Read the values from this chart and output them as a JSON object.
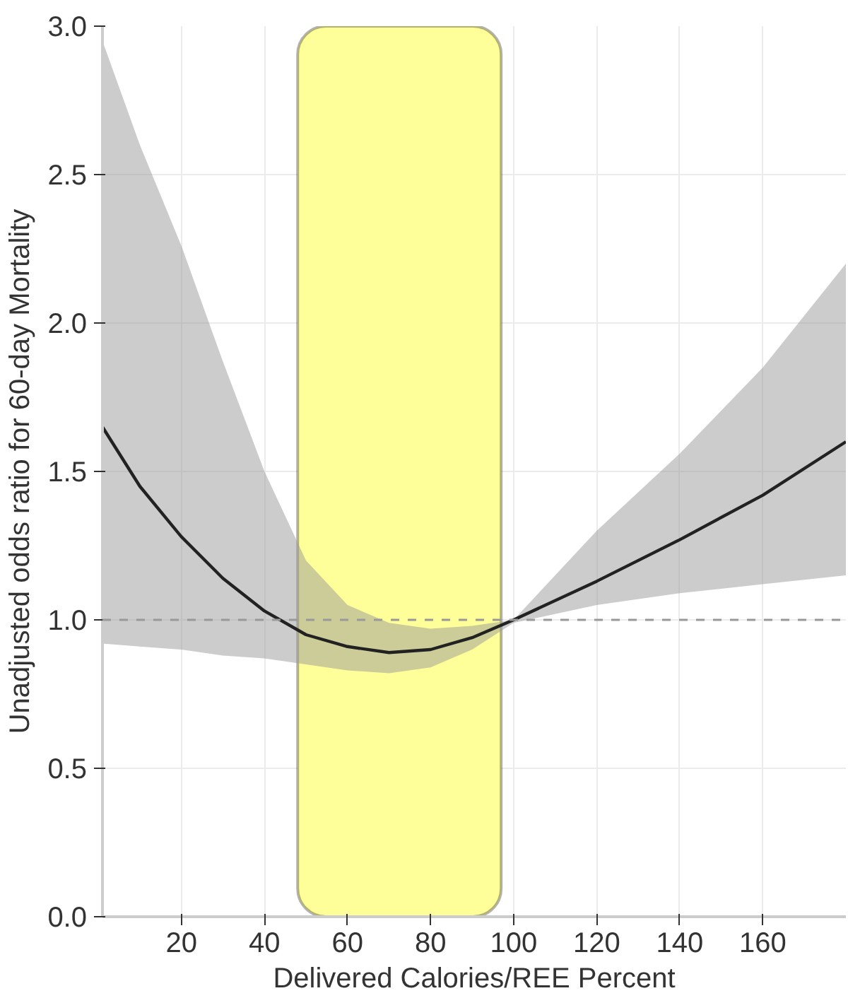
{
  "chart_data": {
    "type": "line",
    "xlabel": "Delivered Calories/REE Percent",
    "ylabel": "Unadjusted odds ratio for 60-day Mortality",
    "x": [
      1,
      10,
      20,
      30,
      40,
      50,
      60,
      70,
      80,
      90,
      100,
      120,
      140,
      160,
      180
    ],
    "series": [
      {
        "color": "#222222",
        "values": [
          1.65,
          1.45,
          1.28,
          1.14,
          1.03,
          0.95,
          0.91,
          0.89,
          0.9,
          0.94,
          1.0,
          1.13,
          1.27,
          1.42,
          1.6
        ],
        "lower": [
          0.92,
          0.91,
          0.9,
          0.88,
          0.87,
          0.85,
          0.83,
          0.82,
          0.84,
          0.9,
          0.99,
          1.05,
          1.09,
          1.12,
          1.15
        ],
        "upper": [
          2.95,
          2.6,
          2.26,
          1.87,
          1.5,
          1.2,
          1.05,
          0.99,
          0.97,
          0.98,
          1.0,
          1.3,
          1.56,
          1.85,
          2.2
        ]
      }
    ],
    "xlim": [
      1,
      180
    ],
    "ylim": [
      0,
      3
    ],
    "xticks": [
      20,
      40,
      60,
      80,
      100,
      120,
      140,
      160
    ],
    "yticks": [
      {
        "value": 0,
        "label": "0.0"
      },
      {
        "value": 0.5,
        "label": "0.5"
      },
      {
        "value": 1,
        "label": "1.0"
      },
      {
        "value": 1.5,
        "label": "1.5"
      },
      {
        "value": 2,
        "label": "2.0"
      },
      {
        "value": 2.5,
        "label": "2.5"
      },
      {
        "value": 3,
        "label": "3.0"
      }
    ],
    "ref_lines": [
      {
        "axis": "y",
        "value": 1,
        "color": "#999999",
        "line_style": "dashed"
      }
    ],
    "bands": [
      {
        "axis": "x",
        "from": 48,
        "to": 97,
        "color": "#ffff99"
      }
    ],
    "grid": true,
    "line_style": "solid",
    "marker": "none"
  }
}
